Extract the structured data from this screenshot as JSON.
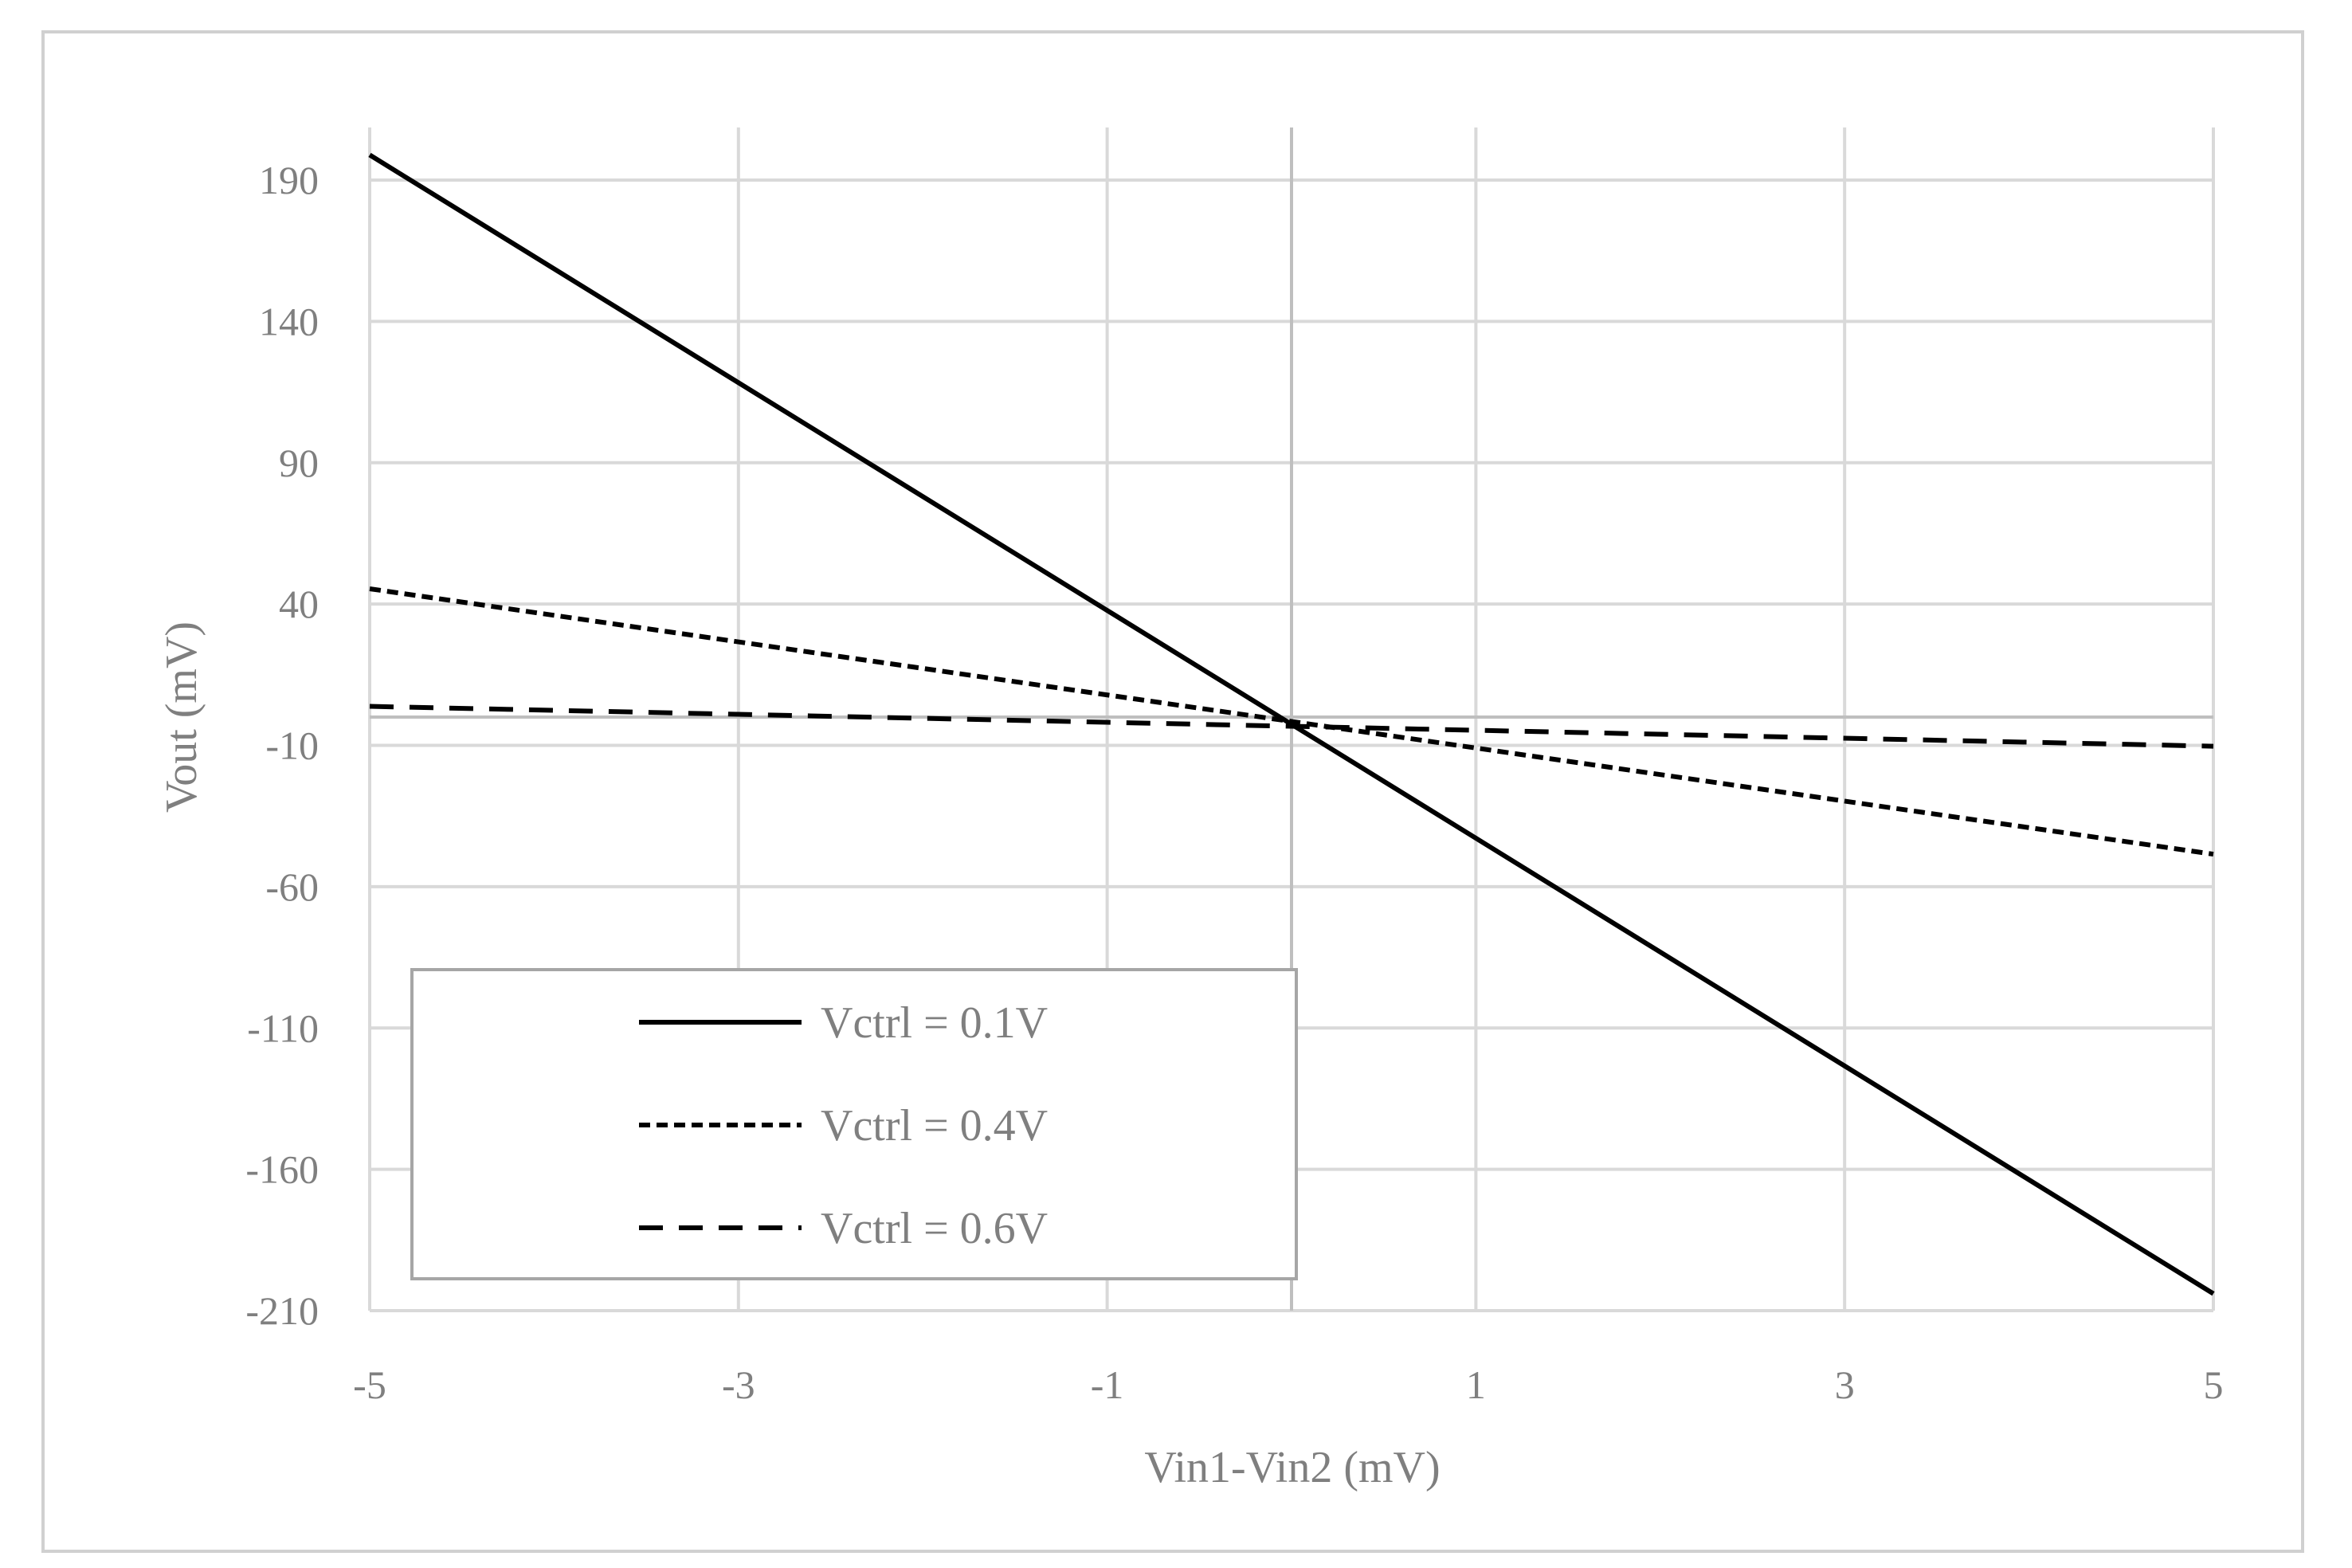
{
  "chart_data": {
    "type": "line",
    "title": "",
    "xlabel": "Vin1-Vin2 (mV)",
    "ylabel": "Vout (mV)",
    "xlim": [
      -5,
      5
    ],
    "ylim": [
      -210,
      200
    ],
    "x_ticks": [
      -5,
      -3,
      -1,
      1,
      3,
      5
    ],
    "y_ticks": [
      190,
      140,
      90,
      40,
      -10,
      -60,
      -110,
      -160,
      -210
    ],
    "grid": true,
    "legend_position": "bottom-left",
    "series": [
      {
        "name": "Vctrl = 0.1V",
        "style": "solid",
        "x": [
          -5,
          5
        ],
        "y": [
          198.9,
          -204
        ]
      },
      {
        "name": "Vctrl = 0.4V",
        "style": "dotted",
        "x": [
          -5,
          5
        ],
        "y": [
          45.4,
          -48.5
        ]
      },
      {
        "name": "Vctrl = 0.6V",
        "style": "dashed",
        "x": [
          -5,
          5
        ],
        "y": [
          3.8,
          -10.3
        ]
      }
    ],
    "colors": {
      "lines": "#000000",
      "grid": "#d9d9d9",
      "text": "#7f7f7f",
      "legend_border": "#a6a6a6"
    }
  }
}
